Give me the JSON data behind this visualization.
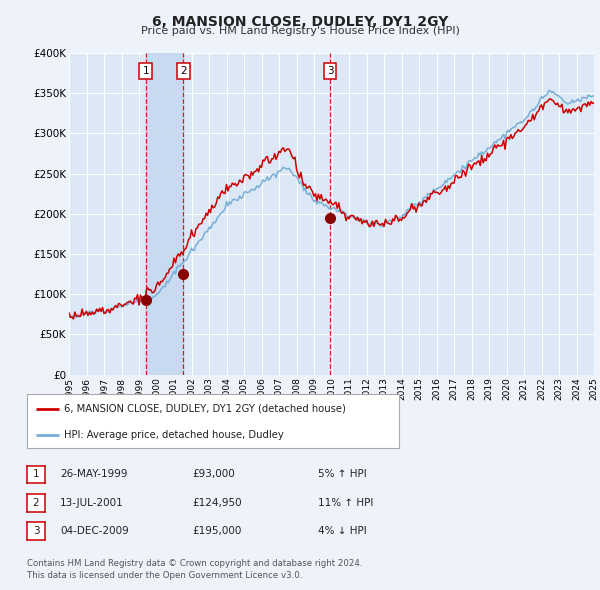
{
  "title": "6, MANSION CLOSE, DUDLEY, DY1 2GY",
  "subtitle": "Price paid vs. HM Land Registry's House Price Index (HPI)",
  "ylim": [
    0,
    400000
  ],
  "yticks": [
    0,
    50000,
    100000,
    150000,
    200000,
    250000,
    300000,
    350000,
    400000
  ],
  "ytick_labels": [
    "£0",
    "£50K",
    "£100K",
    "£150K",
    "£200K",
    "£250K",
    "£300K",
    "£350K",
    "£400K"
  ],
  "x_start_year": 1995,
  "x_end_year": 2025,
  "background_color": "#eef2fa",
  "plot_bg_color": "#dce8f5",
  "grid_color": "#ffffff",
  "red_line_color": "#cc0000",
  "blue_line_color": "#7aaed6",
  "sale1_date": 1999.38,
  "sale1_price": 93000,
  "sale2_date": 2001.53,
  "sale2_price": 124950,
  "sale3_date": 2009.92,
  "sale3_price": 195000,
  "legend_red_label": "6, MANSION CLOSE, DUDLEY, DY1 2GY (detached house)",
  "legend_blue_label": "HPI: Average price, detached house, Dudley",
  "table_rows": [
    {
      "num": "1",
      "date": "26-MAY-1999",
      "price": "£93,000",
      "hpi": "5% ↑ HPI"
    },
    {
      "num": "2",
      "date": "13-JUL-2001",
      "price": "£124,950",
      "hpi": "11% ↑ HPI"
    },
    {
      "num": "3",
      "date": "04-DEC-2009",
      "price": "£195,000",
      "hpi": "4% ↓ HPI"
    }
  ],
  "footnote": "Contains HM Land Registry data © Crown copyright and database right 2024.\nThis data is licensed under the Open Government Licence v3.0.",
  "vline1": 1999.38,
  "vline2": 2001.53,
  "vline3": 2009.92
}
